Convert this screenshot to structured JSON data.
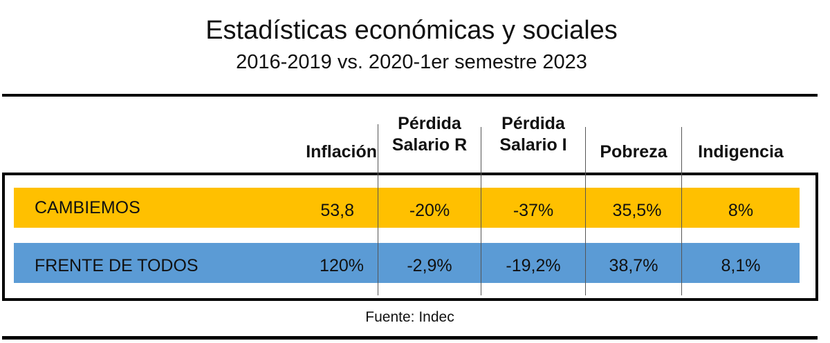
{
  "title": "Estadísticas económicas y sociales",
  "subtitle": "2016-2019 vs. 2020-1er semestre 2023",
  "columns": [
    {
      "line1": "",
      "line2": "Inflación"
    },
    {
      "line1": "Pérdida",
      "line2": "Salario R"
    },
    {
      "line1": "Pérdida",
      "line2": "Salario I"
    },
    {
      "line1": "",
      "line2": "Pobreza"
    },
    {
      "line1": "",
      "line2": "Indigencia"
    }
  ],
  "rows": [
    {
      "party": "CAMBIEMOS",
      "color": "#FFC000",
      "values": [
        "53,8",
        "-20%",
        "-37%",
        "35,5%",
        "8%"
      ]
    },
    {
      "party": "FRENTE DE TODOS",
      "color": "#5B9BD5",
      "values": [
        "120%",
        "-2,9%",
        "-19,2%",
        "38,7%",
        "8,1%"
      ]
    }
  ],
  "footer": "Fuente: Indec"
}
